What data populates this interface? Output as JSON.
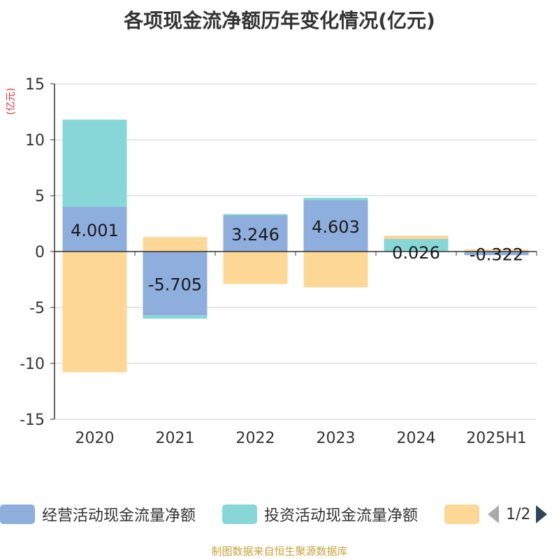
{
  "title": "各项现金流净额历年变化情况(亿元)",
  "footer": "制图数据来自恒生聚源数据库",
  "chart_data": {
    "type": "bar",
    "stacked": true,
    "ylabel": "(亿元)",
    "ylim": [
      -15,
      15
    ],
    "yticks": [
      15,
      10,
      5,
      0,
      -5,
      -10,
      -15
    ],
    "grid": true,
    "legend_position": "bottom",
    "categories": [
      "2020",
      "2021",
      "2022",
      "2023",
      "2024",
      "2025H1"
    ],
    "series": [
      {
        "name": "经营活动现金流量净额",
        "color": "#8eaedd",
        "values": [
          4.001,
          -5.705,
          3.246,
          4.603,
          0.026,
          -0.322
        ],
        "labels": [
          "4.001",
          "-5.705",
          "3.246",
          "4.603",
          "0.026",
          "-0.322"
        ]
      },
      {
        "name": "投资活动现金流量净额",
        "color": "#87d6d8",
        "values": [
          7.8,
          -0.3,
          0.1,
          0.2,
          1.1,
          0.0
        ]
      },
      {
        "name": "",
        "color": "#fdd796",
        "values": [
          -10.8,
          1.3,
          -2.9,
          -3.2,
          0.3,
          0.2
        ]
      }
    ]
  },
  "legend": {
    "page_indicator": "1/2"
  }
}
